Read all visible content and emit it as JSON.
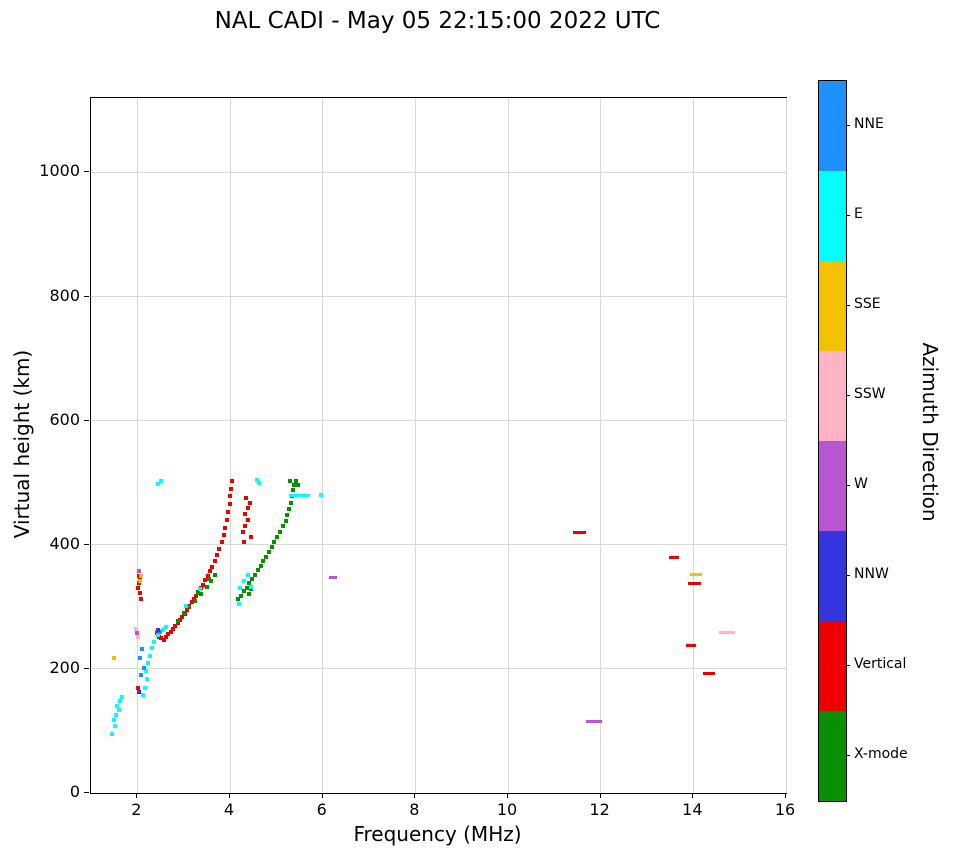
{
  "title": "NAL CADI - May 05 22:15:00 2022 UTC",
  "chart_data": {
    "type": "scatter",
    "title": "NAL CADI - May 05 22:15:00 2022 UTC",
    "xlabel": "Frequency (MHz)",
    "ylabel": "Virtual height (km)",
    "xlim": [
      1,
      16
    ],
    "ylim": [
      0,
      1120
    ],
    "xticks": [
      2,
      4,
      6,
      8,
      10,
      12,
      14,
      16
    ],
    "yticks": [
      0,
      200,
      400,
      600,
      800,
      1000
    ],
    "grid": true,
    "colorbar": {
      "label": "Azimuth Direction",
      "categories": [
        {
          "label": "NNE",
          "color": "#1E90FF"
        },
        {
          "label": "E",
          "color": "#00FFFF"
        },
        {
          "label": "SSE",
          "color": "#F2C200"
        },
        {
          "label": "SSW",
          "color": "#FFB3C6"
        },
        {
          "label": "W",
          "color": "#BA55D3"
        },
        {
          "label": "NNW",
          "color": "#3535E0"
        },
        {
          "label": "Vertical",
          "color": "#EE0000"
        },
        {
          "label": "X-mode",
          "color": "#089000"
        }
      ]
    },
    "series": [
      {
        "name": "Vertical",
        "color": "#EE0000",
        "points": [
          [
            2.02,
            330
          ],
          [
            2.04,
            338
          ],
          [
            2.06,
            345
          ],
          [
            2.03,
            350
          ],
          [
            2.05,
            322
          ],
          [
            2.07,
            312
          ],
          [
            2.02,
            170
          ],
          [
            2.42,
            258
          ],
          [
            2.47,
            252
          ],
          [
            2.52,
            249
          ],
          [
            2.57,
            247
          ],
          [
            2.62,
            251
          ],
          [
            2.67,
            256
          ],
          [
            2.72,
            260
          ],
          [
            2.77,
            264
          ],
          [
            2.82,
            269
          ],
          [
            2.87,
            274
          ],
          [
            2.92,
            279
          ],
          [
            2.97,
            284
          ],
          [
            3.02,
            289
          ],
          [
            3.07,
            295
          ],
          [
            3.12,
            301
          ],
          [
            3.17,
            307
          ],
          [
            3.22,
            313
          ],
          [
            3.27,
            318
          ],
          [
            3.32,
            324
          ],
          [
            3.37,
            330
          ],
          [
            3.42,
            336
          ],
          [
            3.47,
            343
          ],
          [
            3.52,
            350
          ],
          [
            3.57,
            357
          ],
          [
            3.62,
            365
          ],
          [
            3.67,
            374
          ],
          [
            3.72,
            383
          ],
          [
            3.77,
            393
          ],
          [
            3.82,
            404
          ],
          [
            3.86,
            415
          ],
          [
            3.9,
            427
          ],
          [
            3.93,
            440
          ],
          [
            3.96,
            453
          ],
          [
            3.99,
            466
          ],
          [
            4.01,
            478
          ],
          [
            4.03,
            490
          ],
          [
            4.05,
            502
          ],
          [
            4.28,
            420
          ],
          [
            4.33,
            430
          ],
          [
            4.38,
            440
          ],
          [
            4.33,
            450
          ],
          [
            4.38,
            460
          ],
          [
            4.43,
            468
          ],
          [
            4.35,
            475
          ],
          [
            4.45,
            412
          ],
          [
            4.3,
            405
          ],
          [
            11.55,
            420,
            0.28
          ],
          [
            13.58,
            380,
            0.22
          ],
          [
            14.02,
            337,
            0.28
          ],
          [
            13.95,
            237,
            0.22
          ],
          [
            14.33,
            193,
            0.26
          ]
        ]
      },
      {
        "name": "X-mode",
        "color": "#089000",
        "points": [
          [
            2.87,
            277
          ],
          [
            3.0,
            290
          ],
          [
            3.12,
            300
          ],
          [
            3.25,
            310
          ],
          [
            3.37,
            320
          ],
          [
            3.5,
            332
          ],
          [
            3.6,
            342
          ],
          [
            3.68,
            352
          ],
          [
            3.55,
            345
          ],
          [
            3.3,
            322
          ],
          [
            4.18,
            312
          ],
          [
            4.24,
            318
          ],
          [
            4.3,
            325
          ],
          [
            4.36,
            331
          ],
          [
            4.42,
            338
          ],
          [
            4.48,
            345
          ],
          [
            4.54,
            352
          ],
          [
            4.6,
            359
          ],
          [
            4.66,
            366
          ],
          [
            4.72,
            374
          ],
          [
            4.78,
            381
          ],
          [
            4.84,
            389
          ],
          [
            4.9,
            397
          ],
          [
            4.96,
            405
          ],
          [
            5.02,
            413
          ],
          [
            5.08,
            421
          ],
          [
            5.14,
            430
          ],
          [
            5.2,
            439
          ],
          [
            5.24,
            448
          ],
          [
            5.28,
            458
          ],
          [
            5.32,
            468
          ],
          [
            5.34,
            478
          ],
          [
            5.36,
            488
          ],
          [
            5.38,
            497
          ],
          [
            5.3,
            502
          ],
          [
            5.42,
            503
          ],
          [
            5.46,
            497
          ],
          [
            4.4,
            320
          ],
          [
            4.46,
            328
          ]
        ]
      },
      {
        "name": "E",
        "color": "#00FFFF",
        "points": [
          [
            1.45,
            95
          ],
          [
            1.52,
            108
          ],
          [
            1.49,
            118
          ],
          [
            1.55,
            126
          ],
          [
            1.6,
            133
          ],
          [
            1.57,
            141
          ],
          [
            1.63,
            148
          ],
          [
            1.66,
            155
          ],
          [
            2.12,
            158
          ],
          [
            2.16,
            170
          ],
          [
            2.2,
            183
          ],
          [
            2.18,
            196
          ],
          [
            2.23,
            209
          ],
          [
            2.27,
            221
          ],
          [
            2.31,
            233
          ],
          [
            2.36,
            243
          ],
          [
            2.45,
            255
          ],
          [
            2.55,
            262
          ],
          [
            2.62,
            268
          ],
          [
            3.05,
            302
          ],
          [
            3.35,
            328
          ],
          [
            4.2,
            305
          ],
          [
            4.22,
            330
          ],
          [
            4.3,
            342
          ],
          [
            4.38,
            352
          ],
          [
            4.46,
            332
          ],
          [
            2.44,
            498
          ],
          [
            2.52,
            503
          ],
          [
            4.58,
            505
          ],
          [
            4.62,
            500
          ],
          [
            5.5,
            480,
            0.45
          ],
          [
            5.96,
            480
          ]
        ]
      },
      {
        "name": "NNE",
        "color": "#1E90FF",
        "points": [
          [
            2.08,
            190
          ],
          [
            2.14,
            202
          ],
          [
            2.06,
            218
          ],
          [
            2.1,
            232
          ],
          [
            2.48,
            260
          ]
        ]
      },
      {
        "name": "NNW",
        "color": "#3535E0",
        "points": [
          [
            2.03,
            163
          ],
          [
            2.44,
            262
          ]
        ]
      },
      {
        "name": "W",
        "color": "#BA55D3",
        "points": [
          [
            2.04,
            357
          ],
          [
            2.0,
            258
          ],
          [
            6.22,
            347,
            0.18
          ],
          [
            11.85,
            115,
            0.35
          ]
        ]
      },
      {
        "name": "SSE",
        "color": "#F2C200",
        "points": [
          [
            1.5,
            218
          ],
          [
            2.05,
            342
          ],
          [
            2.08,
            350
          ],
          [
            14.06,
            352,
            0.26
          ]
        ]
      },
      {
        "name": "SSW",
        "color": "#FFB3C6",
        "points": [
          [
            1.98,
            265
          ],
          [
            2.02,
            252
          ],
          [
            14.72,
            258,
            0.35
          ]
        ]
      }
    ]
  }
}
